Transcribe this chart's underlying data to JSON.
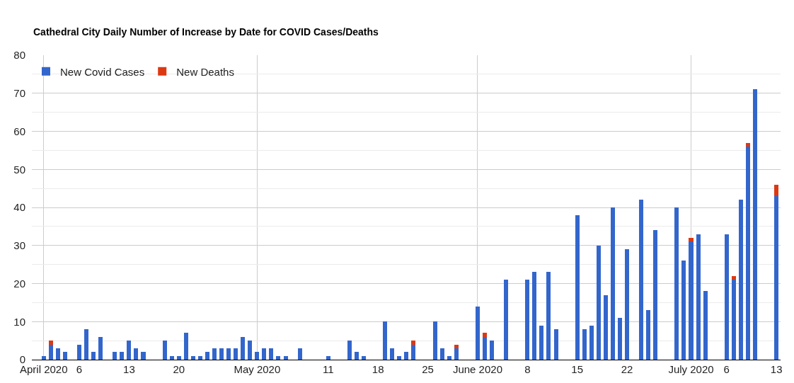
{
  "chart_data": {
    "type": "bar",
    "title": "Cathedral City Daily Number of Increase by Date for COVID Cases/Deaths",
    "x": [
      "2020-04-01",
      "2020-04-02",
      "2020-04-03",
      "2020-04-04",
      "2020-04-06",
      "2020-04-07",
      "2020-04-08",
      "2020-04-09",
      "2020-04-11",
      "2020-04-12",
      "2020-04-13",
      "2020-04-14",
      "2020-04-15",
      "2020-04-18",
      "2020-04-19",
      "2020-04-20",
      "2020-04-21",
      "2020-04-22",
      "2020-04-23",
      "2020-04-24",
      "2020-04-25",
      "2020-04-26",
      "2020-04-27",
      "2020-04-28",
      "2020-04-29",
      "2020-04-30",
      "2020-05-01",
      "2020-05-02",
      "2020-05-03",
      "2020-05-04",
      "2020-05-05",
      "2020-05-07",
      "2020-05-11",
      "2020-05-14",
      "2020-05-15",
      "2020-05-16",
      "2020-05-19",
      "2020-05-20",
      "2020-05-21",
      "2020-05-22",
      "2020-05-23",
      "2020-05-26",
      "2020-05-27",
      "2020-05-28",
      "2020-05-29",
      "2020-06-01",
      "2020-06-02",
      "2020-06-03",
      "2020-06-05",
      "2020-06-08",
      "2020-06-09",
      "2020-06-10",
      "2020-06-11",
      "2020-06-12",
      "2020-06-15",
      "2020-06-16",
      "2020-06-17",
      "2020-06-18",
      "2020-06-19",
      "2020-06-20",
      "2020-06-21",
      "2020-06-22",
      "2020-06-24",
      "2020-06-25",
      "2020-06-26",
      "2020-06-29",
      "2020-06-30",
      "2020-07-01",
      "2020-07-02",
      "2020-07-03",
      "2020-07-06",
      "2020-07-07",
      "2020-07-08",
      "2020-07-09",
      "2020-07-10",
      "2020-07-13"
    ],
    "series": [
      {
        "name": "New Covid Cases",
        "color": "#3366cc",
        "values": [
          1,
          4,
          3,
          2,
          4,
          8,
          2,
          6,
          2,
          2,
          5,
          3,
          2,
          5,
          1,
          1,
          7,
          1,
          1,
          2,
          3,
          3,
          3,
          3,
          6,
          5,
          2,
          3,
          3,
          1,
          1,
          3,
          1,
          5,
          2,
          1,
          10,
          3,
          1,
          2,
          4,
          10,
          3,
          1,
          3,
          14,
          6,
          5,
          21,
          21,
          23,
          9,
          23,
          8,
          38,
          8,
          9,
          30,
          17,
          40,
          11,
          29,
          42,
          13,
          34,
          40,
          26,
          31,
          33,
          18,
          33,
          21,
          42,
          56,
          71,
          43
        ]
      },
      {
        "name": "New Deaths",
        "color": "#dc3912",
        "values": [
          null,
          1,
          null,
          null,
          null,
          null,
          null,
          null,
          null,
          null,
          null,
          null,
          null,
          null,
          null,
          null,
          null,
          null,
          null,
          null,
          null,
          null,
          null,
          null,
          null,
          null,
          null,
          null,
          null,
          null,
          null,
          null,
          null,
          null,
          null,
          null,
          null,
          null,
          null,
          null,
          1,
          null,
          null,
          null,
          1,
          null,
          1,
          null,
          null,
          null,
          null,
          null,
          null,
          null,
          null,
          null,
          null,
          null,
          null,
          null,
          null,
          null,
          null,
          null,
          null,
          null,
          null,
          1,
          null,
          null,
          null,
          1,
          null,
          1,
          null,
          3
        ]
      }
    ],
    "stacked": true,
    "xlim": [
      "2020-03-30T08:00",
      "2020-07-13T14:00"
    ],
    "xticks": [
      {
        "value": "2020-04-01",
        "label": "April 2020"
      },
      {
        "value": "2020-04-06",
        "label": "6"
      },
      {
        "value": "2020-04-13",
        "label": "13"
      },
      {
        "value": "2020-04-20",
        "label": "20"
      },
      {
        "value": "2020-05-01",
        "label": "May 2020"
      },
      {
        "value": "2020-05-11",
        "label": "11"
      },
      {
        "value": "2020-05-18",
        "label": "18"
      },
      {
        "value": "2020-05-25",
        "label": "25"
      },
      {
        "value": "2020-06-01",
        "label": "June 2020"
      },
      {
        "value": "2020-06-08",
        "label": "8"
      },
      {
        "value": "2020-06-15",
        "label": "15"
      },
      {
        "value": "2020-06-22",
        "label": "22"
      },
      {
        "value": "2020-07-01",
        "label": "July 2020"
      },
      {
        "value": "2020-07-06",
        "label": "6"
      },
      {
        "value": "2020-07-13",
        "label": "13"
      }
    ],
    "ylim": [
      0,
      80
    ],
    "yticks": [
      0,
      {
        "value": 5,
        "label": null
      },
      10,
      {
        "value": 15,
        "label": null
      },
      20,
      {
        "value": 25,
        "label": null
      },
      30,
      {
        "value": 35,
        "label": null
      },
      40,
      {
        "value": 45,
        "label": null
      },
      50,
      {
        "value": 55,
        "label": null
      },
      60,
      {
        "value": 65,
        "label": null
      },
      70,
      {
        "value": 75,
        "label": null
      },
      80
    ],
    "grid": true,
    "legend": "top left"
  }
}
